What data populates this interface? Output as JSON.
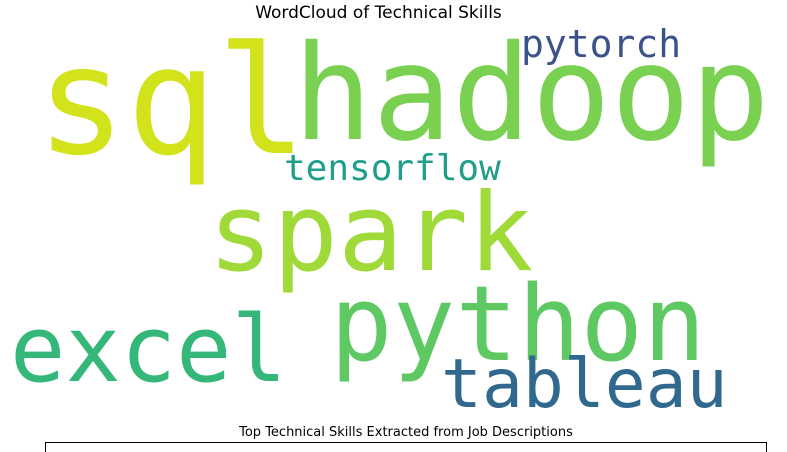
{
  "chart_data": {
    "type": "wordcloud",
    "title": "WordCloud of Technical Skills",
    "words": [
      {
        "text": "sql",
        "color": "#d2e21b"
      },
      {
        "text": "hadoop",
        "color": "#7ad151"
      },
      {
        "text": "pytorch",
        "color": "#3b528b"
      },
      {
        "text": "tensorflow",
        "color": "#1f9e89"
      },
      {
        "text": "spark",
        "color": "#a0da39"
      },
      {
        "text": "python",
        "color": "#5ec962"
      },
      {
        "text": "excel",
        "color": "#35b779"
      },
      {
        "text": "tableau",
        "color": "#31688e"
      }
    ]
  },
  "table": {
    "caption": "Top Technical Skills Extracted from Job Descriptions"
  }
}
